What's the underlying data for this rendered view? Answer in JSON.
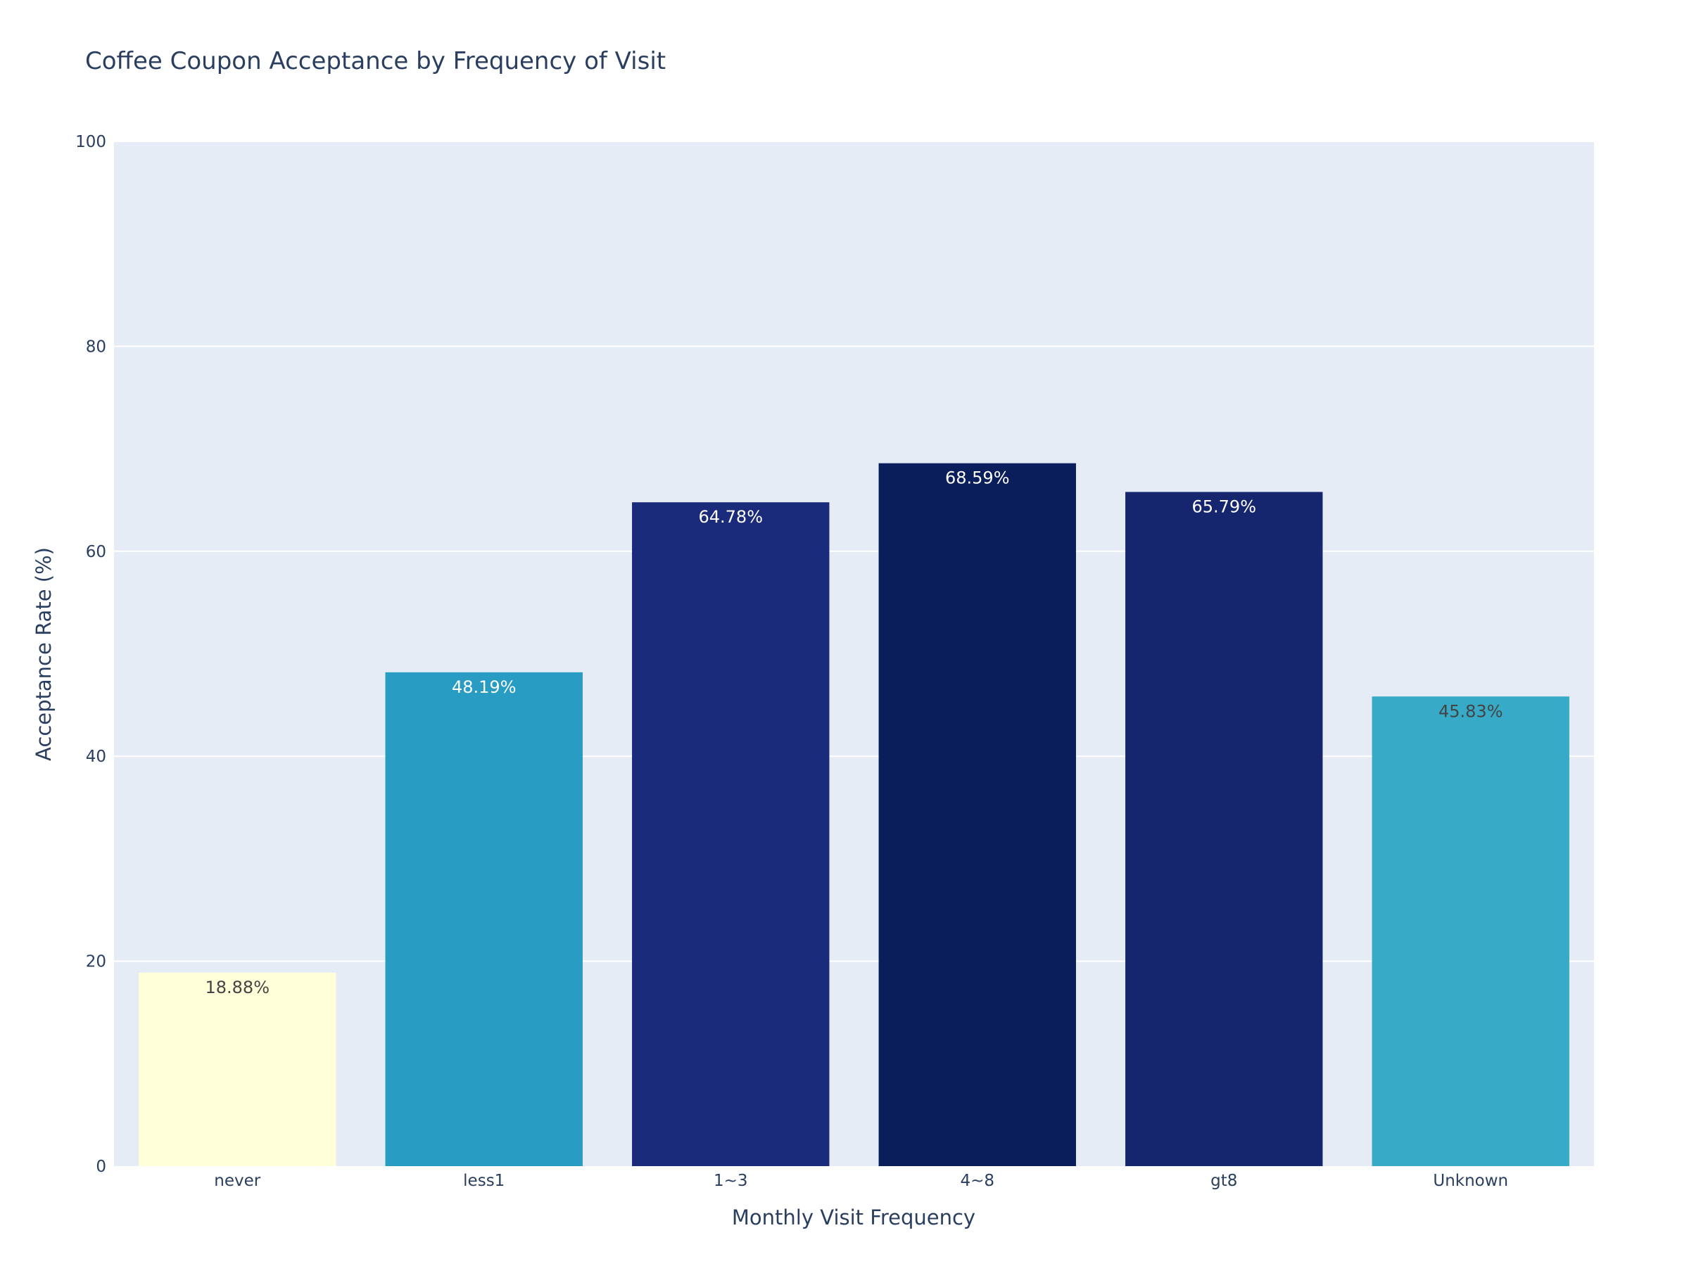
{
  "chart_data": {
    "type": "bar",
    "title": "Coffee Coupon Acceptance by Frequency of Visit",
    "xlabel": "Monthly Visit Frequency",
    "ylabel": "Acceptance Rate (%)",
    "ylim": [
      0,
      100
    ],
    "yticks": [
      0,
      20,
      40,
      60,
      80,
      100
    ],
    "grid": true,
    "categories": [
      "never",
      "less1",
      "1~3",
      "4~8",
      "gt8",
      "Unknown"
    ],
    "values": [
      18.88,
      48.19,
      64.78,
      68.59,
      65.79,
      45.83
    ],
    "data_labels": [
      "18.88%",
      "48.19%",
      "64.78%",
      "68.59%",
      "65.79%",
      "45.83%"
    ],
    "bar_colors": [
      "#ffffd9",
      "#289cc3",
      "#1b2b7c",
      "#091e5b",
      "#15266f",
      "#36aac6"
    ],
    "label_colors": [
      "#444444",
      "#ffffff",
      "#ffffff",
      "#ffffff",
      "#ffffff",
      "#444444"
    ],
    "plot_background": "#e5ecf6",
    "grid_color": "#ffffff",
    "text_color": "#2a3f5f"
  }
}
